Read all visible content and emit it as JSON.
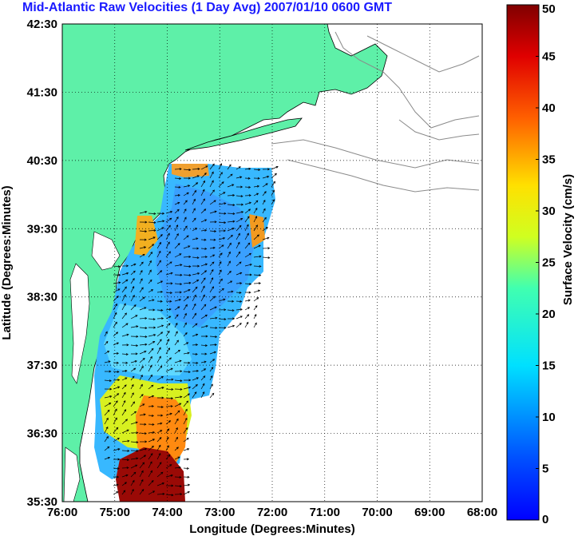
{
  "title": "Mid-Atlantic Raw Velocities (1 Day Avg) 2007/01/10 0600 GMT",
  "map": {
    "xlabel": "Longitude (Degrees:Minutes)",
    "ylabel": "Latitude (Degrees:Minutes)",
    "x_ticks": [
      "76:00",
      "75:00",
      "74:00",
      "73:00",
      "72:00",
      "71:00",
      "70:00",
      "69:00",
      "68:00"
    ],
    "y_ticks": [
      "42:30",
      "41:30",
      "40:30",
      "39:30",
      "38:30",
      "37:30",
      "36:30",
      "35:30"
    ],
    "lon_range": [
      -76,
      -68
    ],
    "lat_range": [
      35.5,
      42.5
    ],
    "grid": true,
    "land_color": "#5ef0a8"
  },
  "colorbar": {
    "label": "Surface Velocity (cm/s)",
    "ticks": [
      "50",
      "45",
      "40",
      "35",
      "30",
      "25",
      "20",
      "15",
      "10",
      "5",
      "0"
    ],
    "range": [
      0,
      50
    ],
    "colormap": "jet"
  }
}
